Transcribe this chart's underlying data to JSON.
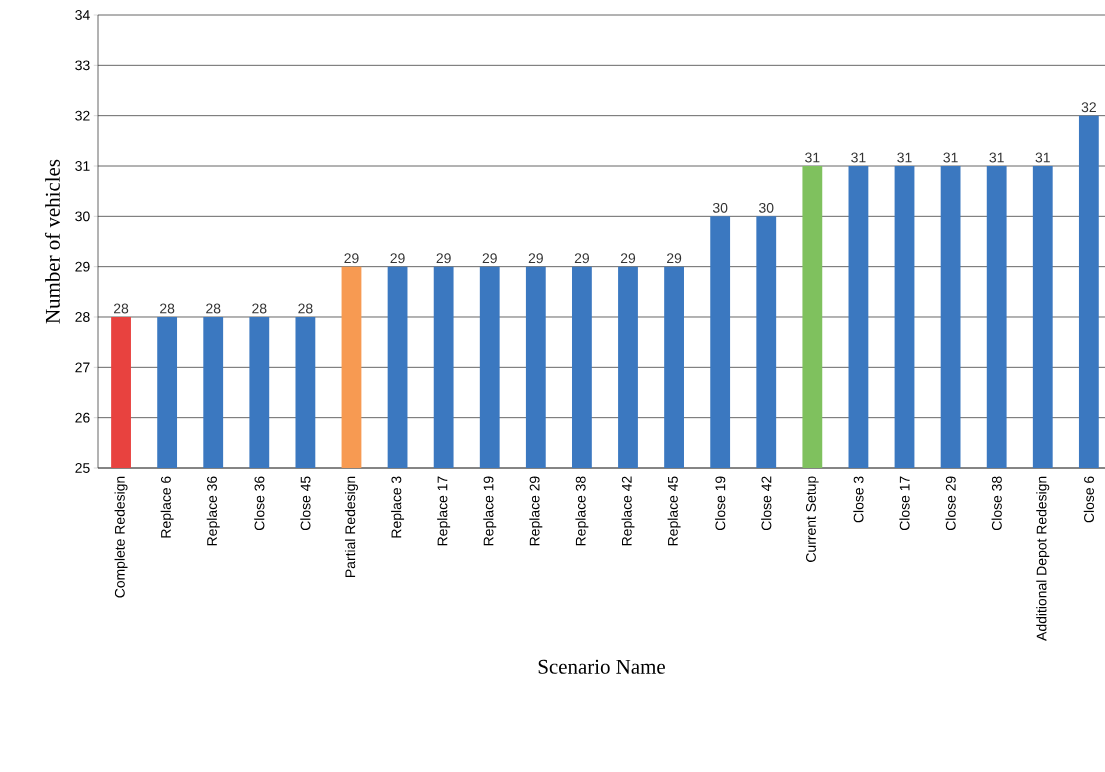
{
  "chart_data": {
    "type": "bar",
    "xlabel": "Scenario Name",
    "ylabel": "Number of vehicles",
    "categories": [
      "Complete Redesign",
      "Replace 6",
      "Replace 36",
      "Close 36",
      "Close 45",
      "Partial Redesign",
      "Replace 3",
      "Replace 17",
      "Replace 19",
      "Replace 29",
      "Replace 38",
      "Replace 42",
      "Replace 45",
      "Close 19",
      "Close 42",
      "Current Setup",
      "Close 3",
      "Close 17",
      "Close 29",
      "Close 38",
      "Additional Depot Redesign",
      "Close 6"
    ],
    "values": [
      28,
      28,
      28,
      28,
      28,
      29,
      29,
      29,
      29,
      29,
      29,
      29,
      29,
      30,
      30,
      31,
      31,
      31,
      31,
      31,
      31,
      32
    ],
    "colors": [
      "#e8423f",
      "#3b78c0",
      "#3b78c0",
      "#3b78c0",
      "#3b78c0",
      "#f79a52",
      "#3b78c0",
      "#3b78c0",
      "#3b78c0",
      "#3b78c0",
      "#3b78c0",
      "#3b78c0",
      "#3b78c0",
      "#3b78c0",
      "#3b78c0",
      "#7fc15e",
      "#3b78c0",
      "#3b78c0",
      "#3b78c0",
      "#3b78c0",
      "#3b78c0",
      "#3b78c0"
    ],
    "ylim": [
      25,
      34
    ],
    "yticks": [
      25,
      26,
      27,
      28,
      29,
      30,
      31,
      32,
      33,
      34
    ],
    "grid": "y",
    "data_labels": true
  }
}
